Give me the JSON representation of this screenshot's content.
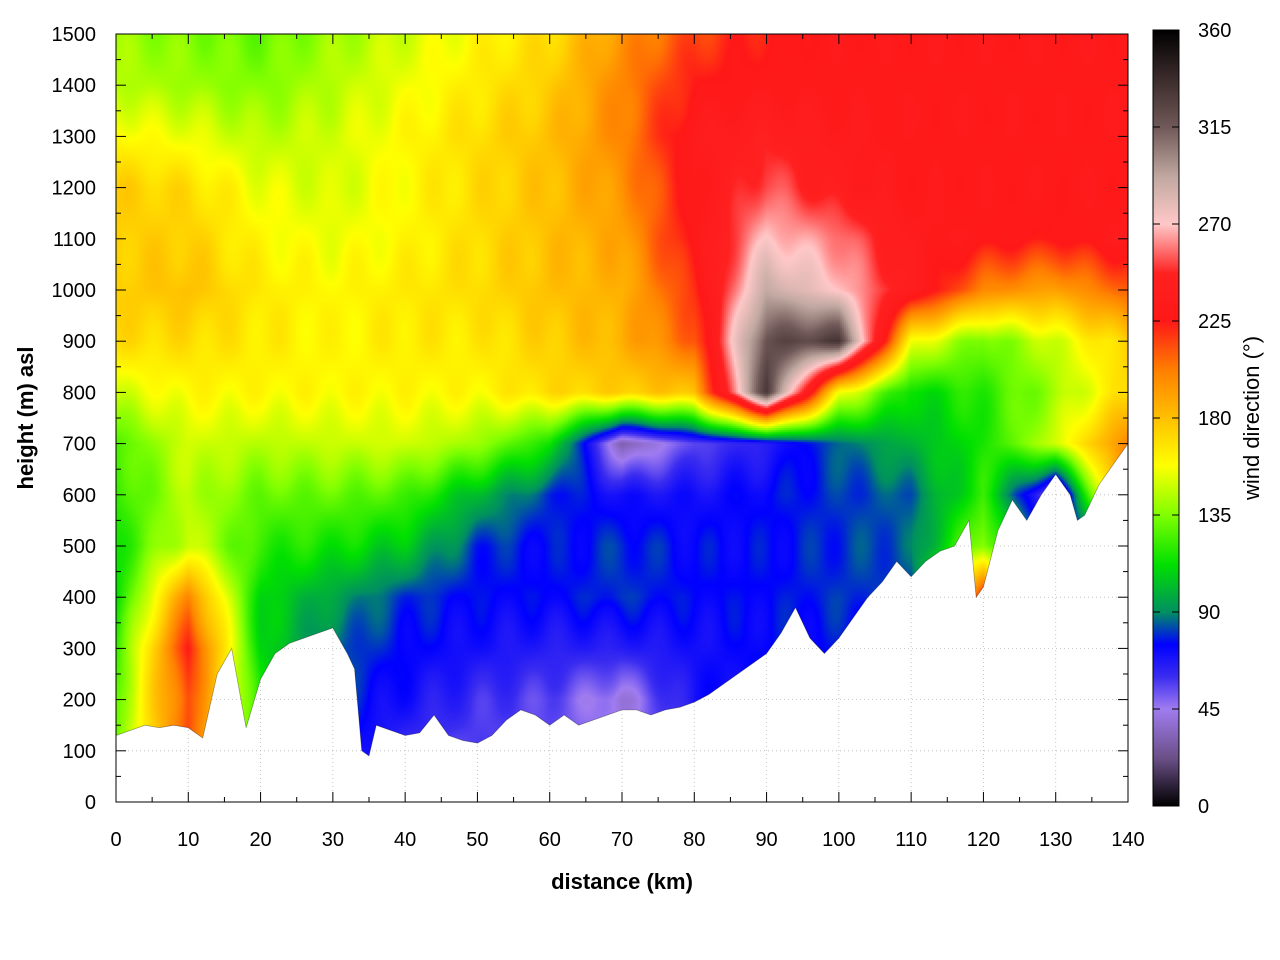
{
  "chart_data": {
    "type": "heatmap",
    "title": "",
    "xlabel": "distance (km)",
    "ylabel": "height (m) asl",
    "xlim": [
      0,
      140
    ],
    "ylim": [
      0,
      1500
    ],
    "x_ticks": [
      0,
      10,
      20,
      30,
      40,
      50,
      60,
      70,
      80,
      90,
      100,
      110,
      120,
      130,
      140
    ],
    "x_tick_labels": [
      "0",
      "10",
      "20",
      "30",
      "40",
      "50",
      "60",
      "70",
      "80",
      "90",
      "100",
      "110",
      "120",
      "130",
      "140"
    ],
    "y_ticks": [
      0,
      100,
      200,
      300,
      400,
      500,
      600,
      700,
      800,
      900,
      1000,
      1100,
      1200,
      1300,
      1400,
      1500
    ],
    "y_tick_labels": [
      "0",
      "100",
      "200",
      "300",
      "400",
      "500",
      "600",
      "700",
      "800",
      "900",
      "1000",
      "1100",
      "1200",
      "1300",
      "1400",
      "1500"
    ],
    "grid": true,
    "colorbar": {
      "label": "wind direction (°)",
      "range": [
        0,
        360
      ],
      "ticks": [
        0,
        45,
        90,
        135,
        180,
        225,
        270,
        315,
        360
      ],
      "tick_labels": [
        "0",
        "45",
        "90",
        "135",
        "180",
        "225",
        "270",
        "315",
        "360"
      ],
      "colormap_stops": [
        {
          "value": 0,
          "color": "#000000"
        },
        {
          "value": 22,
          "color": "#6a4f86"
        },
        {
          "value": 45,
          "color": "#a07cf0"
        },
        {
          "value": 60,
          "color": "#3a2cf0"
        },
        {
          "value": 75,
          "color": "#0000ff"
        },
        {
          "value": 90,
          "color": "#009060"
        },
        {
          "value": 112,
          "color": "#00e000"
        },
        {
          "value": 135,
          "color": "#80ff00"
        },
        {
          "value": 158,
          "color": "#ffff00"
        },
        {
          "value": 180,
          "color": "#ffc000"
        },
        {
          "value": 202,
          "color": "#ff8000"
        },
        {
          "value": 225,
          "color": "#ff1818"
        },
        {
          "value": 247,
          "color": "#ff2020"
        },
        {
          "value": 270,
          "color": "#ffc8c8"
        },
        {
          "value": 292,
          "color": "#c0a8a0"
        },
        {
          "value": 315,
          "color": "#705858"
        },
        {
          "value": 338,
          "color": "#3a2a2a"
        },
        {
          "value": 360,
          "color": "#000000"
        }
      ]
    },
    "terrain": {
      "x": [
        0,
        2,
        4,
        6,
        8,
        10,
        12,
        14,
        16,
        18,
        20,
        22,
        24,
        26,
        28,
        30,
        32,
        33,
        34,
        35,
        36,
        38,
        40,
        42,
        44,
        46,
        48,
        50,
        52,
        54,
        56,
        58,
        60,
        62,
        64,
        66,
        68,
        70,
        72,
        74,
        76,
        78,
        80,
        82,
        84,
        86,
        88,
        90,
        92,
        94,
        96,
        98,
        100,
        102,
        104,
        106,
        108,
        110,
        112,
        114,
        116,
        118,
        119,
        120,
        122,
        124,
        126,
        128,
        130,
        132,
        133,
        134,
        136,
        138,
        140
      ],
      "height": [
        130,
        140,
        150,
        145,
        150,
        145,
        125,
        250,
        300,
        145,
        240,
        290,
        310,
        320,
        330,
        340,
        290,
        260,
        100,
        90,
        150,
        140,
        130,
        135,
        170,
        130,
        120,
        115,
        130,
        160,
        180,
        170,
        150,
        170,
        150,
        160,
        170,
        180,
        180,
        170,
        180,
        185,
        195,
        210,
        230,
        250,
        270,
        290,
        330,
        380,
        320,
        290,
        320,
        360,
        400,
        430,
        470,
        440,
        470,
        490,
        500,
        550,
        400,
        420,
        530,
        590,
        550,
        600,
        640,
        600,
        550,
        560,
        620,
        660,
        700
      ]
    },
    "field_grid": {
      "distance_km": [
        0,
        10,
        20,
        30,
        40,
        50,
        60,
        70,
        80,
        90,
        100,
        110,
        120,
        130,
        140
      ],
      "height_m": [
        0,
        100,
        200,
        300,
        400,
        500,
        600,
        700,
        800,
        900,
        1000,
        1100,
        1200,
        1300,
        1400,
        1500
      ],
      "wind_direction_deg": [
        [
          130,
          215,
          115,
          80,
          60,
          55,
          55,
          45,
          60,
          70,
          70,
          75,
          225,
          60,
          70
        ],
        [
          130,
          215,
          115,
          80,
          60,
          55,
          55,
          45,
          60,
          70,
          70,
          75,
          225,
          60,
          70
        ],
        [
          130,
          215,
          115,
          80,
          70,
          60,
          55,
          40,
          70,
          75,
          75,
          75,
          225,
          60,
          70
        ],
        [
          120,
          225,
          110,
          85,
          75,
          70,
          65,
          65,
          70,
          75,
          75,
          75,
          225,
          60,
          70
        ],
        [
          110,
          200,
          110,
          95,
          80,
          75,
          75,
          80,
          75,
          75,
          80,
          80,
          225,
          60,
          70
        ],
        [
          115,
          150,
          120,
          115,
          105,
          80,
          75,
          80,
          75,
          75,
          80,
          85,
          140,
          70,
          80
        ],
        [
          120,
          145,
          130,
          130,
          125,
          100,
          80,
          70,
          70,
          75,
          80,
          85,
          120,
          40,
          220
        ],
        [
          125,
          150,
          145,
          148,
          150,
          140,
          115,
          30,
          55,
          65,
          85,
          100,
          115,
          150,
          200
        ],
        [
          150,
          160,
          160,
          160,
          160,
          160,
          170,
          175,
          180,
          330,
          160,
          110,
          120,
          140,
          170
        ],
        [
          170,
          170,
          165,
          160,
          165,
          165,
          175,
          185,
          210,
          320,
          330,
          160,
          130,
          150,
          175
        ],
        [
          175,
          180,
          165,
          160,
          165,
          170,
          180,
          185,
          220,
          290,
          270,
          240,
          200,
          190,
          210
        ],
        [
          175,
          175,
          160,
          155,
          160,
          170,
          180,
          190,
          230,
          270,
          260,
          235,
          230,
          225,
          235
        ],
        [
          175,
          170,
          155,
          150,
          160,
          170,
          180,
          195,
          230,
          255,
          240,
          230,
          230,
          230,
          230
        ],
        [
          160,
          155,
          145,
          150,
          160,
          170,
          180,
          200,
          235,
          245,
          235,
          230,
          230,
          230,
          230
        ],
        [
          145,
          140,
          135,
          145,
          155,
          165,
          175,
          200,
          225,
          230,
          230,
          230,
          230,
          230,
          230
        ],
        [
          140,
          135,
          130,
          140,
          150,
          160,
          170,
          195,
          215,
          225,
          230,
          230,
          230,
          230,
          230
        ]
      ]
    }
  }
}
